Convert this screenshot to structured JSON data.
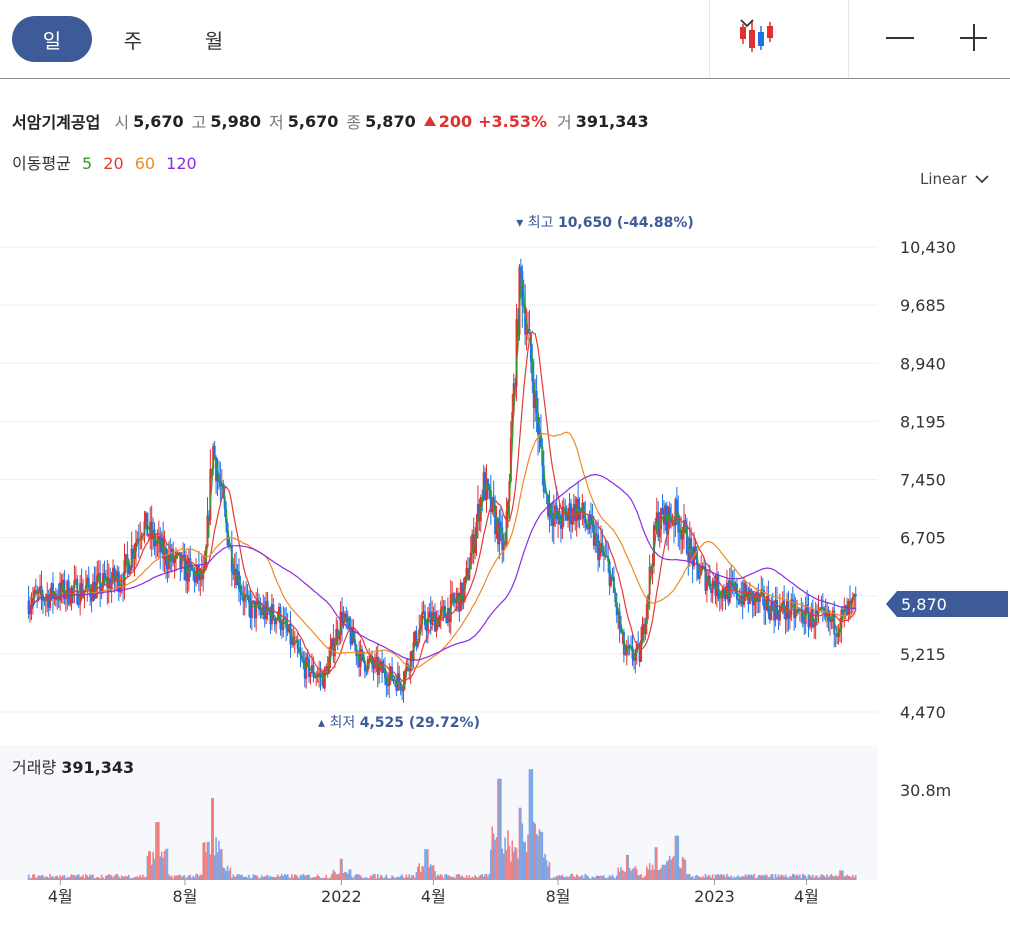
{
  "periods": {
    "day": "일",
    "week": "주",
    "month": "월"
  },
  "quote": {
    "name": "서암기계공업",
    "open_label": "시",
    "open": "5,670",
    "high_label": "고",
    "high": "5,980",
    "low_label": "저",
    "low": "5,670",
    "close_label": "종",
    "close": "5,870",
    "change": "200",
    "change_pct": "+3.53%",
    "volume_label": "거",
    "volume": "391,343"
  },
  "moving_average": {
    "label": "이동평균",
    "p5": "5",
    "p20": "20",
    "p60": "60",
    "p120": "120"
  },
  "scale_selector": "Linear",
  "volume_panel": {
    "label": "거래량",
    "value": "391,343"
  },
  "colors": {
    "accent": "#3e5b99",
    "up": "#e03030",
    "down": "#1a73e8",
    "ma5": "#2aa02a",
    "ma20": "#e53935",
    "ma60": "#f08a24",
    "ma120": "#8a2be2"
  },
  "icons": {
    "chart_type": "candlestick-icon",
    "dropdown": "chevron-down-icon",
    "zoom_out": "minus-icon",
    "zoom_in": "plus-icon"
  },
  "chart_data": {
    "type": "candlestick",
    "title": "",
    "scale": "linear",
    "ylim": [
      4470,
      10650
    ],
    "y_ticks": [
      "10,430",
      "9,685",
      "8,940",
      "8,195",
      "7,450",
      "6,705",
      "5,215",
      "4,470"
    ],
    "x_ticks": [
      "4월",
      "8월",
      "2022",
      "4월",
      "8월",
      "2023",
      "4월"
    ],
    "last_price_label": "5,870",
    "max_annotation": {
      "label": "최고",
      "value": "10,650",
      "pct": "(-44.88%)"
    },
    "min_annotation": {
      "label": "최저",
      "value": "4,525",
      "pct": "(29.72%)"
    },
    "volume_axis_tick": "30.8m",
    "series": {
      "close_trace": [
        [
          "2021-03-01",
          5900
        ],
        [
          "2021-04-01",
          6000
        ],
        [
          "2021-05-01",
          6050
        ],
        [
          "2021-06-01",
          6200
        ],
        [
          "2021-06-20",
          6900
        ],
        [
          "2021-07-10",
          6500
        ],
        [
          "2021-08-01",
          6300
        ],
        [
          "2021-08-20",
          6150
        ],
        [
          "2021-08-28",
          7900
        ],
        [
          "2021-09-15",
          6500
        ],
        [
          "2021-10-01",
          5800
        ],
        [
          "2021-11-01",
          5700
        ],
        [
          "2021-11-25",
          5050
        ],
        [
          "2021-12-15",
          4900
        ],
        [
          "2022-01-01",
          5700
        ],
        [
          "2022-01-20",
          5150
        ],
        [
          "2022-02-15",
          4950
        ],
        [
          "2022-03-01",
          4850
        ],
        [
          "2022-03-20",
          5600
        ],
        [
          "2022-04-10",
          5700
        ],
        [
          "2022-05-01",
          6000
        ],
        [
          "2022-05-20",
          7400
        ],
        [
          "2022-06-10",
          6500
        ],
        [
          "2022-06-25",
          10100
        ],
        [
          "2022-07-05",
          9000
        ],
        [
          "2022-07-20",
          7200
        ],
        [
          "2022-08-01",
          6900
        ],
        [
          "2022-08-20",
          7100
        ],
        [
          "2022-09-05",
          6700
        ],
        [
          "2022-09-20",
          6300
        ],
        [
          "2022-10-05",
          5200
        ],
        [
          "2022-10-20",
          5200
        ],
        [
          "2022-11-05",
          6900
        ],
        [
          "2022-11-25",
          7000
        ],
        [
          "2022-12-15",
          6300
        ],
        [
          "2023-01-05",
          6050
        ],
        [
          "2023-02-01",
          5950
        ],
        [
          "2023-03-01",
          5800
        ],
        [
          "2023-04-01",
          5700
        ],
        [
          "2023-05-01",
          5600
        ],
        [
          "2023-05-20",
          5870
        ]
      ]
    },
    "volume_peaks": [
      [
        "2021-07-05",
        6.0
      ],
      [
        "2021-08-28",
        8.5
      ],
      [
        "2021-09-05",
        3.2
      ],
      [
        "2022-01-01",
        2.2
      ],
      [
        "2022-03-25",
        3.2
      ],
      [
        "2022-06-05",
        10.5
      ],
      [
        "2022-06-25",
        7.5
      ],
      [
        "2022-07-05",
        11.5
      ],
      [
        "2022-07-15",
        5.0
      ],
      [
        "2022-10-08",
        2.6
      ],
      [
        "2022-11-05",
        3.4
      ],
      [
        "2022-11-25",
        4.6
      ],
      [
        "2023-05-05",
        1.0
      ]
    ]
  }
}
